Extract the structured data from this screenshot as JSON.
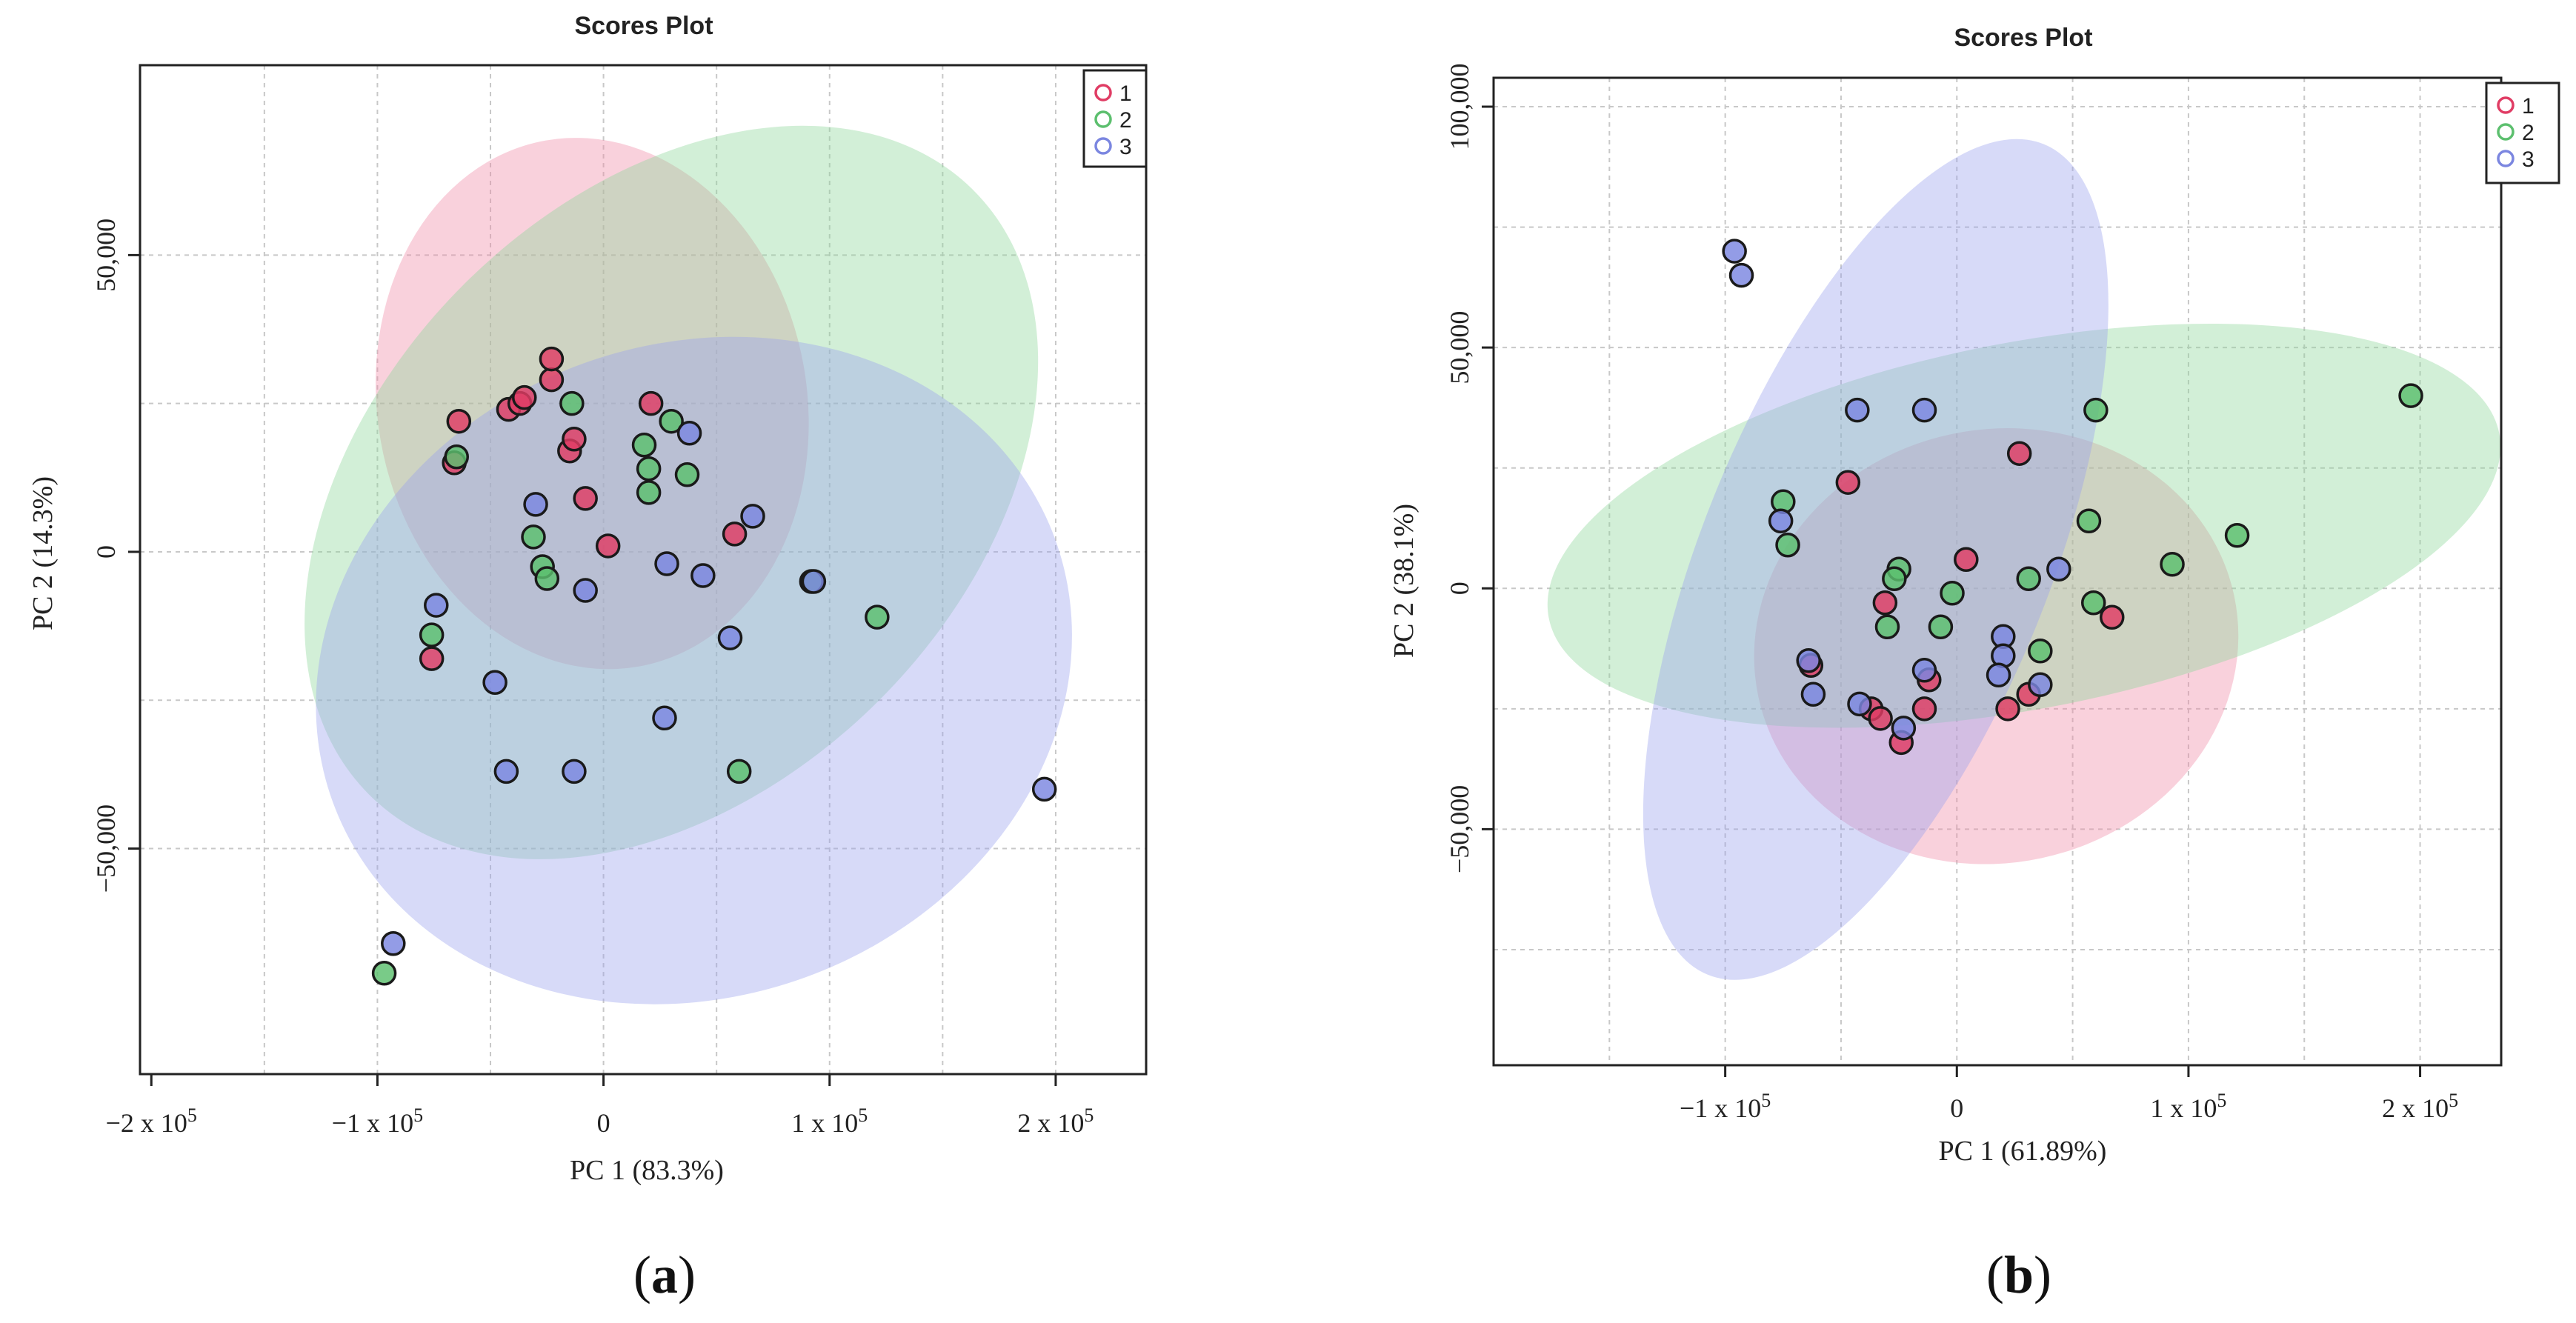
{
  "colors": {
    "group1": "#e03c64",
    "group2": "#5cbf6e",
    "group3": "#7b86e0",
    "ellipse1": "#f08ca8",
    "ellipse2": "#8fd79b",
    "ellipse3": "#9aa3ee"
  },
  "panels": [
    {
      "label": "(a)",
      "label_main": "a"
    },
    {
      "label": "(b)",
      "label_main": "b"
    }
  ],
  "chart_data": [
    {
      "type": "scatter",
      "title": "Scores Plot",
      "xlabel": "PC 1 (83.3%)",
      "ylabel": "PC 2 (14.3%)",
      "xlim": [
        -205000,
        240000
      ],
      "ylim": [
        -88000,
        82000
      ],
      "grid": true,
      "legend_placement": "top-right",
      "x_ticks": [
        {
          "value": -200000,
          "label": "−2 x 10⁵",
          "label_main": "−2 x 10",
          "label_exp": "5"
        },
        {
          "value": -100000,
          "label": "−1 x 10⁵",
          "label_main": "−1 x 10",
          "label_exp": "5"
        },
        {
          "value": 0,
          "label": "0",
          "label_main": "0",
          "label_exp": ""
        },
        {
          "value": 100000,
          "label": "1 x 10⁵",
          "label_main": "1 x 10",
          "label_exp": "5"
        },
        {
          "value": 200000,
          "label": "2 x 10⁵",
          "label_main": "2 x 10",
          "label_exp": "5"
        }
      ],
      "y_ticks": [
        {
          "value": 50000,
          "label": "50,000"
        },
        {
          "value": 0,
          "label": "0"
        },
        {
          "value": -50000,
          "label": "−50,000"
        }
      ],
      "x_grid": [
        -150000,
        -100000,
        -50000,
        0,
        50000,
        100000,
        150000,
        200000
      ],
      "y_grid": [
        50000,
        25000,
        0,
        -25000,
        -50000
      ],
      "ellipses": [
        {
          "group": "1",
          "cx": -5000,
          "cy": 25000,
          "rx": 95000,
          "ry": 45000,
          "angle": 10
        },
        {
          "group": "2",
          "cx": 30000,
          "cy": 10000,
          "rx": 130000,
          "ry": 72000,
          "angle": -45
        },
        {
          "group": "3",
          "cx": 40000,
          "cy": -20000,
          "rx": 170000,
          "ry": 55000,
          "angle": 20
        }
      ],
      "series": [
        {
          "name": "1",
          "points": [
            [
              -64000,
              22000
            ],
            [
              -66000,
              15000
            ],
            [
              -42000,
              24000
            ],
            [
              -37000,
              25000
            ],
            [
              -35000,
              26000
            ],
            [
              -23000,
              29000
            ],
            [
              -23000,
              32500
            ],
            [
              -15000,
              17000
            ],
            [
              -13000,
              19000
            ],
            [
              -8000,
              9000
            ],
            [
              2000,
              1000
            ],
            [
              21000,
              25000
            ],
            [
              58000,
              3000
            ],
            [
              -76000,
              -18000
            ]
          ]
        },
        {
          "name": "2",
          "points": [
            [
              -65000,
              16000
            ],
            [
              -14000,
              25000
            ],
            [
              -31000,
              2500
            ],
            [
              -27000,
              -2500
            ],
            [
              -25000,
              -4500
            ],
            [
              18000,
              18000
            ],
            [
              20000,
              14000
            ],
            [
              20000,
              10000
            ],
            [
              30000,
              22000
            ],
            [
              37000,
              13000
            ],
            [
              -76000,
              -14000
            ],
            [
              60000,
              -37000
            ],
            [
              121000,
              -11000
            ],
            [
              -97000,
              -71000
            ],
            [
              92000,
              -5000
            ]
          ]
        },
        {
          "name": "3",
          "points": [
            [
              -74000,
              -9000
            ],
            [
              -30000,
              8000
            ],
            [
              -8000,
              -6500
            ],
            [
              -48000,
              -22000
            ],
            [
              -43000,
              -37000
            ],
            [
              -13000,
              -37000
            ],
            [
              28000,
              -2000
            ],
            [
              38000,
              20000
            ],
            [
              44000,
              -4000
            ],
            [
              56000,
              -14500
            ],
            [
              66000,
              6000
            ],
            [
              27000,
              -28000
            ],
            [
              93000,
              -5000
            ],
            [
              -93000,
              -66000
            ],
            [
              195000,
              -40000
            ]
          ]
        }
      ]
    },
    {
      "type": "scatter",
      "title": "Scores Plot",
      "xlabel": "PC 1 (61.89%)",
      "ylabel": "PC 2 (38.1%)",
      "xlim": [
        -200000,
        235000
      ],
      "ylim": [
        -99000,
        106000
      ],
      "grid": true,
      "legend_placement": "top-right",
      "x_ticks": [
        {
          "value": -100000,
          "label": "−1 x 10⁵",
          "label_main": "−1 x 10",
          "label_exp": "5"
        },
        {
          "value": 0,
          "label": "0",
          "label_main": "0",
          "label_exp": ""
        },
        {
          "value": 100000,
          "label": "1 x 10⁵",
          "label_main": "1 x 10",
          "label_exp": "5"
        },
        {
          "value": 200000,
          "label": "2 x 10⁵",
          "label_main": "2 x 10",
          "label_exp": "5"
        }
      ],
      "y_ticks": [
        {
          "value": 100000,
          "label": "100,000"
        },
        {
          "value": 50000,
          "label": "50,000"
        },
        {
          "value": 0,
          "label": "0"
        },
        {
          "value": -50000,
          "label": "−50,000"
        }
      ],
      "x_grid": [
        -150000,
        -100000,
        -50000,
        0,
        50000,
        100000,
        150000,
        200000
      ],
      "y_grid": [
        100000,
        75000,
        50000,
        25000,
        0,
        -25000,
        -50000,
        -75000
      ],
      "ellipses": [
        {
          "group": "1",
          "cx": 17000,
          "cy": -12000,
          "rx": 105000,
          "ry": 45000,
          "angle": 12
        },
        {
          "group": "2",
          "cx": 29000,
          "cy": 13000,
          "rx": 209000,
          "ry": 38000,
          "angle": 11
        },
        {
          "group": "3",
          "cx": -35000,
          "cy": 6000,
          "rx": 75000,
          "ry": 93000,
          "angle": -22
        }
      ],
      "series": [
        {
          "name": "1",
          "points": [
            [
              -47000,
              22000
            ],
            [
              27000,
              28000
            ],
            [
              -31000,
              -3000
            ],
            [
              4000,
              6000
            ],
            [
              -12000,
              -19000
            ],
            [
              -14000,
              -25000
            ],
            [
              -37000,
              -25000
            ],
            [
              -33000,
              -27000
            ],
            [
              -24000,
              -32000
            ],
            [
              22000,
              -25000
            ],
            [
              31000,
              -22000
            ],
            [
              67000,
              -6000
            ],
            [
              -63000,
              -16000
            ]
          ]
        },
        {
          "name": "2",
          "points": [
            [
              -75000,
              18000
            ],
            [
              -73000,
              9000
            ],
            [
              -25000,
              4000
            ],
            [
              -27000,
              2000
            ],
            [
              -30000,
              -8000
            ],
            [
              -2000,
              -1000
            ],
            [
              -7000,
              -8000
            ],
            [
              31000,
              2000
            ],
            [
              57000,
              14000
            ],
            [
              60000,
              37000
            ],
            [
              59000,
              -3000
            ],
            [
              36000,
              -13000
            ],
            [
              121000,
              11000
            ],
            [
              196000,
              40000
            ],
            [
              93000,
              5000
            ]
          ]
        },
        {
          "name": "3",
          "points": [
            [
              -96000,
              70000
            ],
            [
              -93000,
              65000
            ],
            [
              -43000,
              37000
            ],
            [
              -14000,
              37000
            ],
            [
              -76000,
              14000
            ],
            [
              -64000,
              -15000
            ],
            [
              -62000,
              -22000
            ],
            [
              -42000,
              -24000
            ],
            [
              -14000,
              -17000
            ],
            [
              -23000,
              -29000
            ],
            [
              20000,
              -10000
            ],
            [
              20000,
              -14000
            ],
            [
              18000,
              -18000
            ],
            [
              44000,
              4000
            ],
            [
              36000,
              -20000
            ]
          ]
        }
      ]
    }
  ]
}
